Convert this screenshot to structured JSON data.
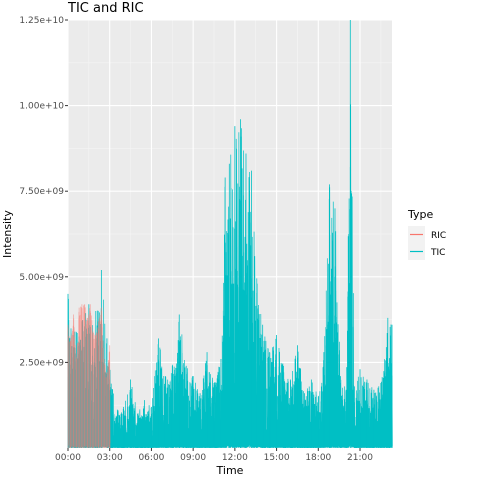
{
  "chart_data": {
    "type": "line",
    "title": "TIC and RIC",
    "xlabel": "Time",
    "ylabel": "Intensity",
    "x_unit": "hours since 00:00",
    "xlim": [
      0,
      23.3
    ],
    "ylim": [
      0,
      12500000000.0
    ],
    "x_ticks": [
      {
        "value": 0,
        "label": "00:00"
      },
      {
        "value": 3,
        "label": "03:00"
      },
      {
        "value": 6,
        "label": "06:00"
      },
      {
        "value": 9,
        "label": "09:00"
      },
      {
        "value": 12,
        "label": "12:00"
      },
      {
        "value": 15,
        "label": "15:00"
      },
      {
        "value": 18,
        "label": "18:00"
      },
      {
        "value": 21,
        "label": "21:00"
      }
    ],
    "y_ticks": [
      {
        "value": 2500000000.0,
        "label": "2.50e+09"
      },
      {
        "value": 5000000000.0,
        "label": "5.00e+09"
      },
      {
        "value": 7500000000.0,
        "label": "7.50e+09"
      },
      {
        "value": 10000000000.0,
        "label": "1.00e+10"
      },
      {
        "value": 12500000000.0,
        "label": "1.25e+10"
      }
    ],
    "grid": true,
    "legend": {
      "title": "Type",
      "position": "right"
    },
    "series": [
      {
        "name": "RIC",
        "color": "#F8766D",
        "x": [
          0,
          0.2,
          0.4,
          0.6,
          0.8,
          1.0,
          1.2,
          1.4,
          1.6,
          1.8,
          2.0,
          2.2,
          2.4,
          2.6,
          2.8,
          3.0
        ],
        "y": [
          3600000000.0,
          3200000000.0,
          3900000000.0,
          2600000000.0,
          4100000000.0,
          4200000000.0,
          4200000000.0,
          3800000000.0,
          4200000000.0,
          3400000000.0,
          3300000000.0,
          3700000000.0,
          4100000000.0,
          2600000000.0,
          2200000000.0,
          3000000000.0
        ]
      },
      {
        "name": "TIC",
        "color": "#00BFC4",
        "x": [
          0,
          0.5,
          1.0,
          1.5,
          2.0,
          2.4,
          2.8,
          3.2,
          3.6,
          4.0,
          4.5,
          5.0,
          5.5,
          6.0,
          6.5,
          7.0,
          7.5,
          8.0,
          8.5,
          9.0,
          9.5,
          10.0,
          10.5,
          11.0,
          11.3,
          11.6,
          12.0,
          12.4,
          12.8,
          13.2,
          13.6,
          14.0,
          14.5,
          15.0,
          15.5,
          16.0,
          16.5,
          17.0,
          17.5,
          18.0,
          18.4,
          18.8,
          19.2,
          19.6,
          20.0,
          20.3,
          20.6,
          21.0,
          21.5,
          22.0,
          22.5,
          23.0,
          23.3
        ],
        "y": [
          4500000000.0,
          3400000000.0,
          3700000000.0,
          4200000000.0,
          4000000000.0,
          5200000000.0,
          3200000000.0,
          1700000000.0,
          1100000000.0,
          1200000000.0,
          2000000000.0,
          1000000000.0,
          1400000000.0,
          1200000000.0,
          3200000000.0,
          2100000000.0,
          2400000000.0,
          3900000000.0,
          2400000000.0,
          2100000000.0,
          1600000000.0,
          2800000000.0,
          1900000000.0,
          2600000000.0,
          7900000000.0,
          8300000000.0,
          9400000000.0,
          9600000000.0,
          8600000000.0,
          8100000000.0,
          4800000000.0,
          3600000000.0,
          2800000000.0,
          3300000000.0,
          2400000000.0,
          2000000000.0,
          3000000000.0,
          1600000000.0,
          2000000000.0,
          1500000000.0,
          2800000000.0,
          7700000000.0,
          7000000000.0,
          2100000000.0,
          1700000000.0,
          12500000000.0,
          1800000000.0,
          2300000000.0,
          2000000000.0,
          1700000000.0,
          1900000000.0,
          3800000000.0,
          3600000000.0
        ]
      }
    ]
  }
}
